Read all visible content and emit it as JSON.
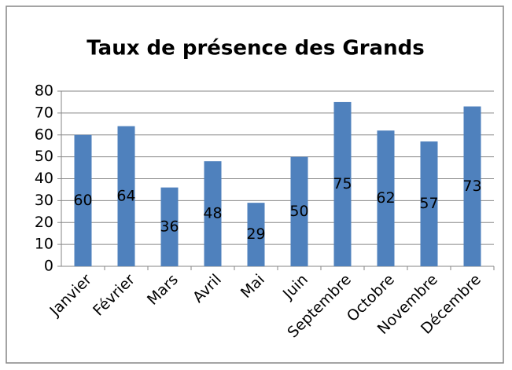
{
  "chart_data": {
    "type": "bar",
    "title": "Taux de présence des Grands",
    "categories": [
      "Janvier",
      "Février",
      "Mars",
      "Avril",
      "Mai",
      "Juin",
      "Septembre",
      "Octobre",
      "Novembre",
      "Décembre"
    ],
    "values": [
      60,
      64,
      36,
      48,
      29,
      50,
      75,
      62,
      57,
      73
    ],
    "color": "#4f81bd",
    "ylim": [
      0,
      80
    ],
    "yticks": [
      0,
      10,
      20,
      30,
      40,
      50,
      60,
      70,
      80
    ],
    "grid": true
  }
}
